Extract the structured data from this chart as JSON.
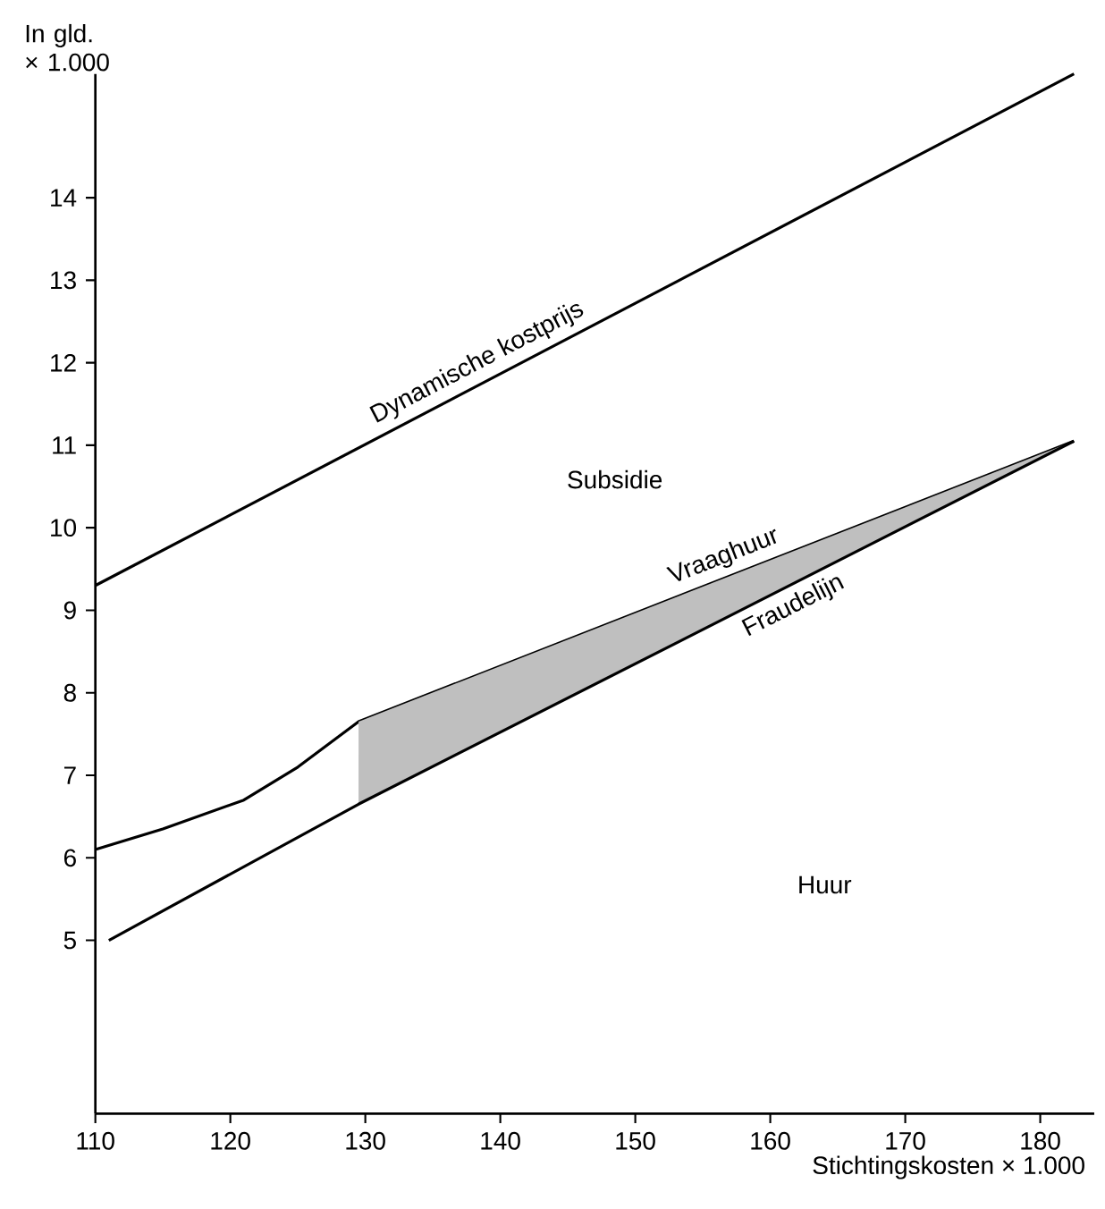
{
  "chart_data": {
    "type": "line",
    "ylabel": "In gld. × 1.000",
    "xlabel": "Stichtingskosten × 1.000",
    "xlim": [
      110,
      184
    ],
    "ylim": [
      2.9,
      15.5
    ],
    "xticks": [
      110,
      120,
      130,
      140,
      150,
      160,
      170,
      180
    ],
    "yticks": [
      5,
      6,
      7,
      8,
      9,
      10,
      11,
      12,
      13,
      14
    ],
    "series": [
      {
        "name": "Dynamische kostprijs",
        "color": "#000000",
        "x": [
          110,
          182.5
        ],
        "values": [
          9.3,
          15.5
        ]
      },
      {
        "name": "Vraaghuur",
        "color": "#000000",
        "x": [
          110,
          115,
          121,
          125,
          129.5,
          182.5
        ],
        "values": [
          6.1,
          6.35,
          6.7,
          7.1,
          7.65,
          11.05
        ],
        "lower": [
          null,
          null,
          null,
          null,
          6.65,
          11.05
        ],
        "upper": [
          null,
          null,
          null,
          null,
          7.65,
          11.05
        ]
      },
      {
        "name": "Fraudelijn",
        "color": "#000000",
        "x": [
          111,
          129.5,
          182.5
        ],
        "values": [
          5.0,
          6.65,
          11.05
        ]
      }
    ],
    "annotations": [
      "Subsidie",
      "Huur"
    ],
    "grid": false,
    "marker": "none",
    "line_style": "solid"
  }
}
